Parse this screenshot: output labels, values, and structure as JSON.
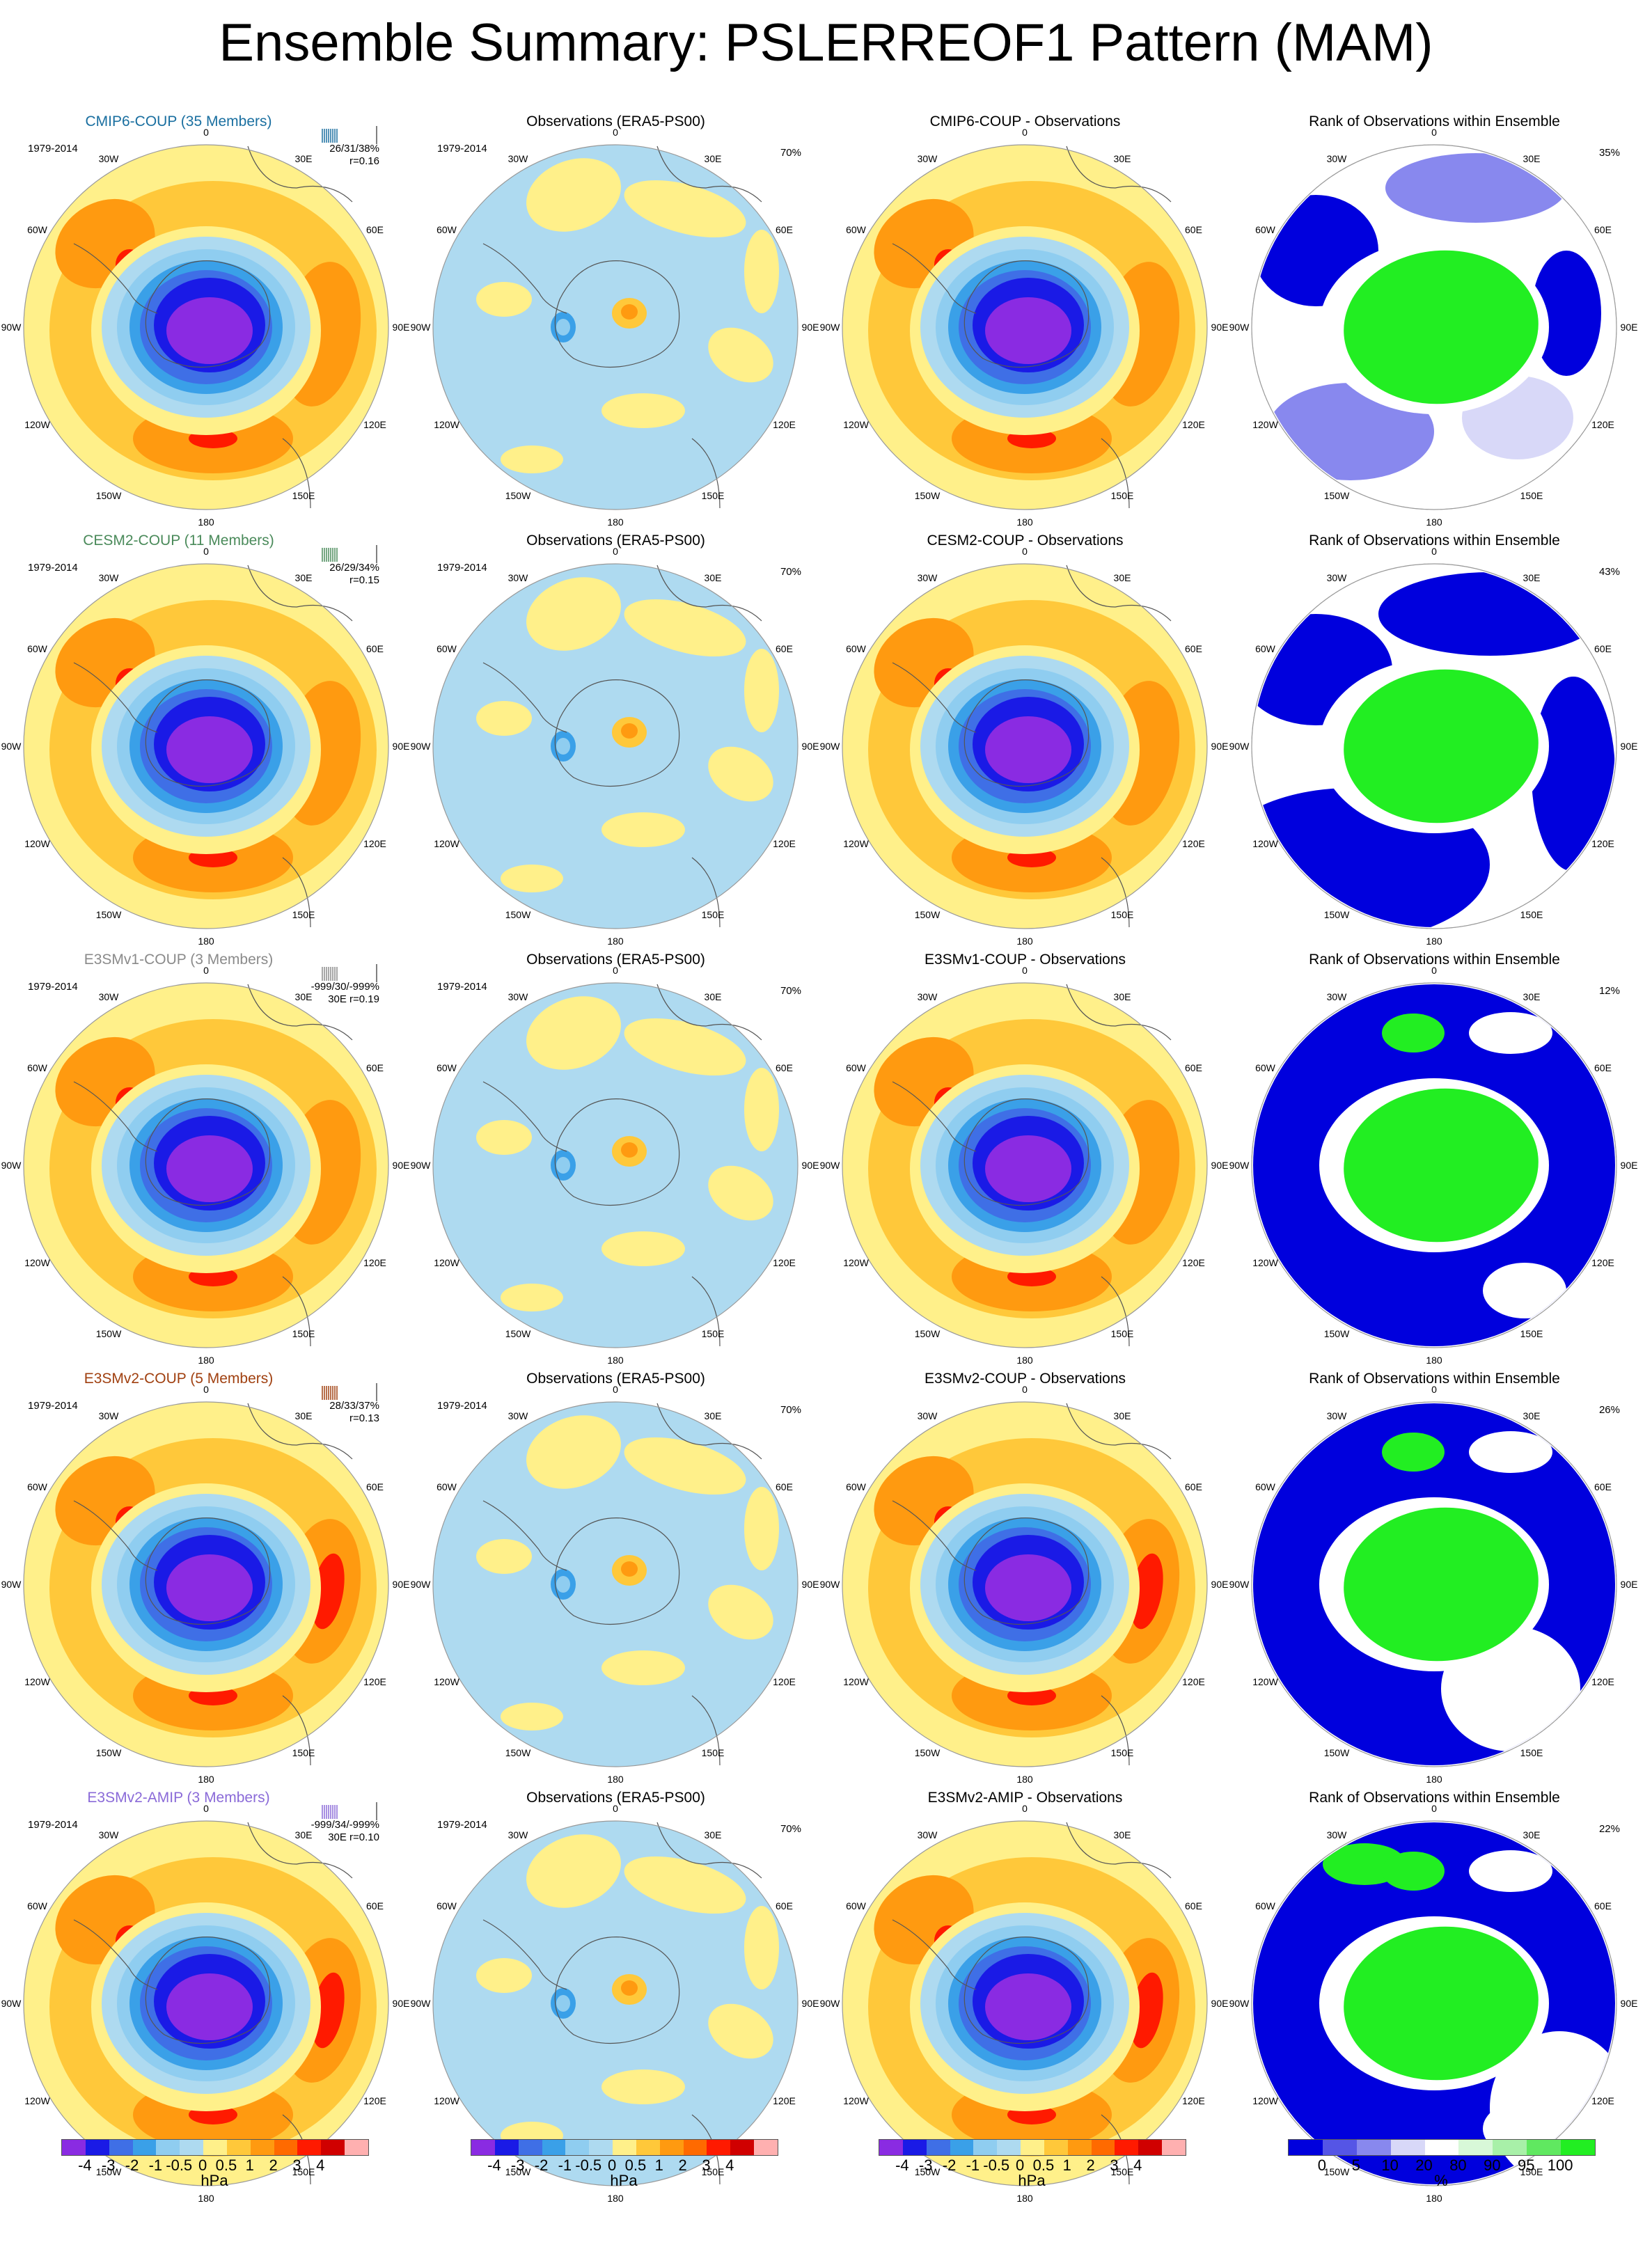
{
  "title": "Ensemble Summary: PSLERREOF1 Pattern (MAM)",
  "colors": {
    "purple": "#8a2be2",
    "blue_dark": "#1a1ae6",
    "blue_mid": "#3f6fe6",
    "blue_med": "#3aa0e8",
    "blue_light": "#8fcdf0",
    "blue_pale": "#aedaf0",
    "yellow_pale": "#fff08a",
    "yellow": "#ffc83a",
    "orange": "#ff9a10",
    "orange_dark": "#ff6a00",
    "red": "#ff1a00",
    "pink": "#ffb0b0",
    "rank_blue": "#0000dd",
    "rank_lavender": "#8888ee",
    "rank_pale": "#d8d8f8",
    "rank_green": "#22ee22",
    "rank_paleg": "#c8f8c8",
    "rank_midg": "#80ee80"
  },
  "grid_labels": [
    "0",
    "30E",
    "60E",
    "90E",
    "120E",
    "150E",
    "180",
    "150W",
    "120W",
    "90W",
    "60W",
    "30W"
  ],
  "rows": [
    {
      "name": "CMIP6-COUP (35 Members)",
      "name_color": "#1a6fa0",
      "period": "1979-2014",
      "stats_line1": "26/31/38%",
      "stats_line2": "r=0.16",
      "obs_title": "Observations (ERA5-PS00)",
      "obs_period": "1979-2014",
      "obs_pct": "70%",
      "diff_title": "CMIP6-COUP - Observations",
      "rank_title": "Rank of Observations within Ensemble",
      "rank_pct": "35%"
    },
    {
      "name": "CESM2-COUP (11 Members)",
      "name_color": "#4a8a5a",
      "period": "1979-2014",
      "stats_line1": "26/29/34%",
      "stats_line2": "r=0.15",
      "obs_title": "Observations (ERA5-PS00)",
      "obs_period": "1979-2014",
      "obs_pct": "70%",
      "diff_title": "CESM2-COUP - Observations",
      "rank_title": "Rank of Observations within Ensemble",
      "rank_pct": "43%"
    },
    {
      "name": "E3SMv1-COUP (3 Members)",
      "name_color": "#8a8a8a",
      "period": "1979-2014",
      "stats_line1": "-999/30/-999%",
      "stats_line2": "30E r=0.19",
      "obs_title": "Observations (ERA5-PS00)",
      "obs_period": "1979-2014",
      "obs_pct": "70%",
      "diff_title": "E3SMv1-COUP - Observations",
      "rank_title": "Rank of Observations within Ensemble",
      "rank_pct": "12%"
    },
    {
      "name": "E3SMv2-COUP (5 Members)",
      "name_color": "#a04010",
      "period": "1979-2014",
      "stats_line1": "28/33/37%",
      "stats_line2": "r=0.13",
      "obs_title": "Observations (ERA5-PS00)",
      "obs_period": "1979-2014",
      "obs_pct": "70%",
      "diff_title": "E3SMv2-COUP - Observations",
      "rank_title": "Rank of Observations within Ensemble",
      "rank_pct": "26%"
    },
    {
      "name": "E3SMv2-AMIP (3 Members)",
      "name_color": "#8a6ad8",
      "period": "1979-2014",
      "stats_line1": "-999/34/-999%",
      "stats_line2": "30E r=0.10",
      "obs_title": "Observations (ERA5-PS00)",
      "obs_period": "1979-2014",
      "obs_pct": "70%",
      "diff_title": "E3SMv2-AMIP - Observations",
      "rank_title": "Rank of Observations within Ensemble",
      "rank_pct": "22%"
    }
  ],
  "colorbar_hpa": {
    "ticks": [
      "-4",
      "-3",
      "-2",
      "-1",
      "-0.5",
      "0",
      "0.5",
      "1",
      "2",
      "3",
      "4"
    ],
    "unit": "hPa",
    "swatches": [
      "#8a2be2",
      "#1a1ae6",
      "#3f6fe6",
      "#3aa0e8",
      "#8fcdf0",
      "#aedaf0",
      "#fff08a",
      "#ffc83a",
      "#ff9a10",
      "#ff6a00",
      "#ff1a00",
      "#d00000",
      "#ffb0b0"
    ]
  },
  "colorbar_rank": {
    "ticks": [
      "0",
      "5",
      "10",
      "20",
      "80",
      "90",
      "95",
      "100"
    ],
    "unit": "%",
    "swatches": [
      "#0000dd",
      "#5555e6",
      "#8888ee",
      "#d8d8f8",
      "#ffffff",
      "#d8f8d8",
      "#a8f0a8",
      "#60e860",
      "#22ee22"
    ]
  }
}
